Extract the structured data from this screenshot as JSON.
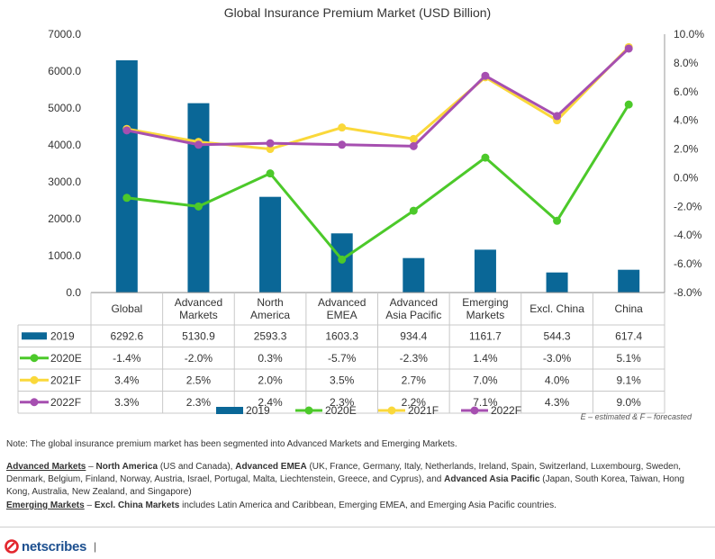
{
  "chart_data": {
    "type": "bar",
    "title": "Global Insurance Premium Market (USD Billion)",
    "categories": [
      "Global",
      "Advanced Markets",
      "North America",
      "Advanced EMEA",
      "Advanced Asia Pacific",
      "Emerging Markets",
      "Excl. China",
      "China"
    ],
    "category_lines": [
      [
        "Global"
      ],
      [
        "Advanced",
        "Markets"
      ],
      [
        "North",
        "America"
      ],
      [
        "Advanced",
        "EMEA"
      ],
      [
        "Advanced",
        "Asia Pacific"
      ],
      [
        "Emerging",
        "Markets"
      ],
      [
        "Excl. China"
      ],
      [
        "China"
      ]
    ],
    "left_axis": {
      "min": 0,
      "max": 7000,
      "ticks": [
        "0.0",
        "1000.0",
        "2000.0",
        "3000.0",
        "4000.0",
        "5000.0",
        "6000.0",
        "7000.0"
      ]
    },
    "right_axis": {
      "min": -8.0,
      "max": 10.0,
      "ticks": [
        "-8.0%",
        "-6.0%",
        "-4.0%",
        "-2.0%",
        "0.0%",
        "2.0%",
        "4.0%",
        "6.0%",
        "8.0%",
        "10.0%"
      ]
    },
    "series": [
      {
        "name": "2019",
        "type": "bar",
        "axis": "left",
        "color": "#0a6797",
        "values": [
          6292.6,
          5130.9,
          2593.3,
          1603.3,
          934.4,
          1161.7,
          544.3,
          617.4
        ],
        "labels": [
          "6292.6",
          "5130.9",
          "2593.3",
          "1603.3",
          "934.4",
          "1161.7",
          "544.3",
          "617.4"
        ]
      },
      {
        "name": "2020E",
        "type": "line",
        "axis": "right",
        "color": "#4cc92a",
        "values": [
          -1.4,
          -2.0,
          0.3,
          -5.7,
          -2.3,
          1.4,
          -3.0,
          5.1
        ],
        "labels": [
          "-1.4%",
          "-2.0%",
          "0.3%",
          "-5.7%",
          "-2.3%",
          "1.4%",
          "-3.0%",
          "5.1%"
        ]
      },
      {
        "name": "2021F",
        "type": "line",
        "axis": "right",
        "color": "#fad83a",
        "values": [
          3.4,
          2.5,
          2.0,
          3.5,
          2.7,
          7.0,
          4.0,
          9.1
        ],
        "labels": [
          "3.4%",
          "2.5%",
          "2.0%",
          "3.5%",
          "2.7%",
          "7.0%",
          "4.0%",
          "9.1%"
        ]
      },
      {
        "name": "2022F",
        "type": "line",
        "axis": "right",
        "color": "#a64fb0",
        "values": [
          3.3,
          2.3,
          2.4,
          2.3,
          2.2,
          7.1,
          4.3,
          9.0
        ],
        "labels": [
          "3.3%",
          "2.3%",
          "2.4%",
          "2.3%",
          "2.2%",
          "7.1%",
          "4.3%",
          "9.0%"
        ]
      }
    ],
    "legend_position": "bottom",
    "footnote": "E – estimated & F – forecasted"
  },
  "notes": {
    "note1": "Note: The global insurance premium market has been segmented into Advanced Markets and Emerging Markets.",
    "advanced_head": "Advanced Markets",
    "dash1": " – ",
    "na_head": "North America",
    "na_text": " (US and Canada), ",
    "emea_head": "Advanced EMEA",
    "emea_text": " (UK, France, Germany, Italy, Netherlands, Ireland, Spain, Switzerland, Luxembourg, Sweden, Denmark, Belgium, Finland, Norway, Austria, Israel, Portugal, Malta, Liechtenstein, Greece, and Cyprus), and ",
    "apac_head": "Advanced Asia Pacific",
    "apac_text": " (Japan, South Korea, Taiwan, Hong Kong, Australia, New Zealand, and Singapore)",
    "emerging_head": "Emerging Markets",
    "dash2": " – ",
    "exchina_head": "Excl. China Markets",
    "exchina_text": " includes Latin America and Caribbean, Emerging EMEA, and Emerging Asia Pacific countries."
  },
  "footer": {
    "logo_text": "netscribes",
    "separator": "|",
    "brand_color": "#e3262d"
  }
}
